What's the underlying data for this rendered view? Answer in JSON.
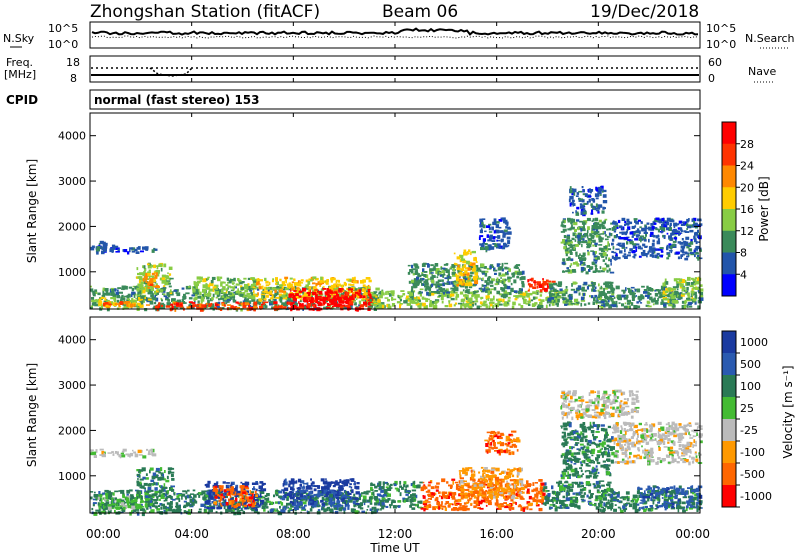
{
  "header": {
    "station": "Zhongshan Station (fitACF)",
    "beam": "Beam 06",
    "date": "19/Dec/2018"
  },
  "nsky_panel": {
    "left_label": "N.Sky",
    "right_label": "N.Search",
    "left_ticks": [
      "10^5",
      "10^0"
    ],
    "right_ticks": [
      "10^5",
      "10^0"
    ]
  },
  "freq_panel": {
    "left_label": "Freq.",
    "unit": "[MHz]",
    "right_label": "Nave",
    "left_ticks": [
      "18",
      "8"
    ],
    "right_ticks": [
      "60",
      "0"
    ]
  },
  "cpid": {
    "label": "CPID",
    "text": "normal (fast stereo) 153"
  },
  "range_axis": {
    "label": "Slant Range [km]",
    "ticks": [
      "4000",
      "3000",
      "2000",
      "1000"
    ]
  },
  "time_axis": {
    "label": "Time UT",
    "ticks": [
      "00:00",
      "04:00",
      "08:00",
      "12:00",
      "16:00",
      "20:00",
      "00:00"
    ]
  },
  "power_scale": {
    "label": "Power [dB]",
    "ticks": [
      "28",
      "24",
      "20",
      "16",
      "12",
      "8",
      "4"
    ],
    "colors": [
      "#ff0000",
      "#ff3300",
      "#ff8800",
      "#ffcc00",
      "#88cc44",
      "#3a8a5a",
      "#2255aa",
      "#0000ff"
    ]
  },
  "velocity_scale": {
    "label": "Velocity [m s⁻¹]",
    "ticks": [
      "1000",
      "500",
      "100",
      "25",
      "-25",
      "-100",
      "-500",
      "-1000"
    ],
    "colors": [
      "#1a3aa0",
      "#2a5ab0",
      "#2a7a55",
      "#44bb33",
      "#bbbbbb",
      "#ff9900",
      "#ff6600",
      "#ff0000"
    ]
  },
  "chart_data": {
    "type": "heatmap",
    "x_range_hours": [
      0,
      24
    ],
    "y_range_km": [
      180,
      4500
    ],
    "power_patches": [
      {
        "t0": 0.0,
        "t1": 2.5,
        "r0": 1450,
        "r1": 1600,
        "level": 1
      },
      {
        "t0": 0.1,
        "t1": 0.6,
        "r0": 1500,
        "r1": 1700,
        "level": 1
      },
      {
        "t0": 0.0,
        "t1": 11.5,
        "r0": 200,
        "r1": 700,
        "level": 2
      },
      {
        "t0": 0.3,
        "t1": 2.3,
        "r0": 250,
        "r1": 450,
        "level": 4
      },
      {
        "t0": 0.5,
        "t1": 1.8,
        "r0": 280,
        "r1": 380,
        "level": 5
      },
      {
        "t0": 1.8,
        "t1": 3.2,
        "r0": 550,
        "r1": 1200,
        "level": 3
      },
      {
        "t0": 2.0,
        "t1": 2.6,
        "r0": 650,
        "r1": 1000,
        "level": 5
      },
      {
        "t0": 2.5,
        "t1": 7.8,
        "r0": 200,
        "r1": 350,
        "level": 6
      },
      {
        "t0": 4.0,
        "t1": 6.5,
        "r0": 400,
        "r1": 900,
        "level": 3
      },
      {
        "t0": 6.5,
        "t1": 11.0,
        "r0": 400,
        "r1": 900,
        "level": 4
      },
      {
        "t0": 7.8,
        "t1": 11.0,
        "r0": 200,
        "r1": 650,
        "level": 7
      },
      {
        "t0": 8.5,
        "t1": 10.2,
        "r0": 250,
        "r1": 500,
        "level": 7
      },
      {
        "t0": 11.0,
        "t1": 19.0,
        "r0": 250,
        "r1": 600,
        "level": 3
      },
      {
        "t0": 12.5,
        "t1": 17.0,
        "r0": 550,
        "r1": 1200,
        "level": 2
      },
      {
        "t0": 14.3,
        "t1": 15.2,
        "r0": 750,
        "r1": 1500,
        "level": 4
      },
      {
        "t0": 15.3,
        "t1": 16.5,
        "r0": 1500,
        "r1": 2200,
        "level": 1
      },
      {
        "t0": 17.2,
        "t1": 18.2,
        "r0": 600,
        "r1": 900,
        "level": 6
      },
      {
        "t0": 18.0,
        "t1": 20.5,
        "r0": 300,
        "r1": 800,
        "level": 2
      },
      {
        "t0": 18.5,
        "t1": 20.5,
        "r0": 1000,
        "r1": 2200,
        "level": 2
      },
      {
        "t0": 18.8,
        "t1": 20.2,
        "r0": 2300,
        "r1": 2900,
        "level": 1
      },
      {
        "t0": 20.5,
        "t1": 24.0,
        "r0": 1300,
        "r1": 2200,
        "level": 1
      },
      {
        "t0": 20.0,
        "t1": 24.0,
        "r0": 250,
        "r1": 700,
        "level": 2
      },
      {
        "t0": 22.5,
        "t1": 24.0,
        "r0": 350,
        "r1": 900,
        "level": 3
      }
    ],
    "velocity_patches": [
      {
        "t0": 0.0,
        "t1": 2.5,
        "r0": 1450,
        "r1": 1600,
        "level": 4
      },
      {
        "t0": 0.0,
        "t1": 11.5,
        "r0": 200,
        "r1": 700,
        "level": 2
      },
      {
        "t0": 0.3,
        "t1": 2.3,
        "r0": 300,
        "r1": 600,
        "level": 3
      },
      {
        "t0": 1.8,
        "t1": 3.2,
        "r0": 550,
        "r1": 1200,
        "level": 2
      },
      {
        "t0": 4.5,
        "t1": 6.8,
        "r0": 300,
        "r1": 900,
        "level": 0
      },
      {
        "t0": 4.8,
        "t1": 6.5,
        "r0": 350,
        "r1": 800,
        "level": 6
      },
      {
        "t0": 7.5,
        "t1": 10.5,
        "r0": 400,
        "r1": 950,
        "level": 0
      },
      {
        "t0": 8.0,
        "t1": 10.2,
        "r0": 300,
        "r1": 700,
        "level": 1
      },
      {
        "t0": 11.0,
        "t1": 13.0,
        "r0": 300,
        "r1": 900,
        "level": 2
      },
      {
        "t0": 13.0,
        "t1": 17.8,
        "r0": 280,
        "r1": 950,
        "level": 6
      },
      {
        "t0": 14.5,
        "t1": 17.0,
        "r0": 550,
        "r1": 1200,
        "level": 5
      },
      {
        "t0": 15.5,
        "t1": 16.8,
        "r0": 1500,
        "r1": 2000,
        "level": 6
      },
      {
        "t0": 17.8,
        "t1": 20.5,
        "r0": 300,
        "r1": 900,
        "level": 2
      },
      {
        "t0": 18.5,
        "t1": 20.5,
        "r0": 1000,
        "r1": 2200,
        "level": 2
      },
      {
        "t0": 18.5,
        "t1": 21.5,
        "r0": 2300,
        "r1": 2900,
        "level": 4
      },
      {
        "t0": 20.5,
        "t1": 24.0,
        "r0": 1300,
        "r1": 2200,
        "level": 4
      },
      {
        "t0": 20.0,
        "t1": 24.0,
        "r0": 250,
        "r1": 700,
        "level": 2
      },
      {
        "t0": 21.5,
        "t1": 24.0,
        "r0": 300,
        "r1": 800,
        "level": 1
      }
    ]
  }
}
